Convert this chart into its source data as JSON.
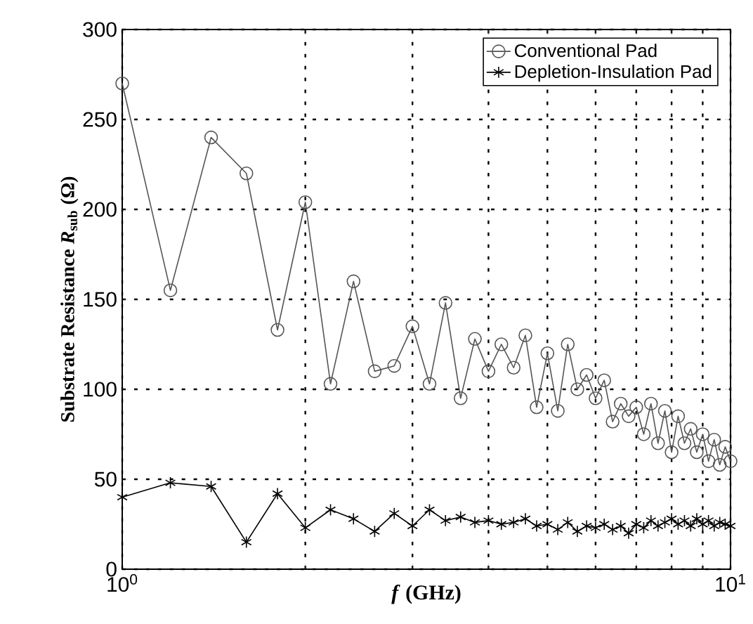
{
  "chart_data": {
    "type": "line",
    "xlabel": "*f* (GHz)",
    "ylabel": "Substrate Resistance *R*$_{sub}$ (Ω)",
    "x": [
      1.0,
      1.2,
      1.4,
      1.6,
      1.8,
      2.0,
      2.2,
      2.4,
      2.6,
      2.8,
      3.0,
      3.2,
      3.4,
      3.6,
      3.8,
      4.0,
      4.2,
      4.4,
      4.6,
      4.8,
      5.0,
      5.2,
      5.4,
      5.6,
      5.8,
      6.0,
      6.2,
      6.4,
      6.6,
      6.8,
      7.0,
      7.2,
      7.4,
      7.6,
      7.8,
      8.0,
      8.2,
      8.4,
      8.6,
      8.8,
      9.0,
      9.2,
      9.4,
      9.6,
      9.8,
      10.0
    ],
    "series": [
      {
        "name": "Conventional Pad",
        "color": "#555555",
        "marker": "circle",
        "values": [
          270,
          155,
          240,
          220,
          133,
          204,
          103,
          160,
          110,
          113,
          135,
          103,
          148,
          95,
          128,
          110,
          125,
          112,
          130,
          90,
          120,
          88,
          125,
          100,
          108,
          95,
          105,
          82,
          92,
          85,
          90,
          75,
          92,
          70,
          88,
          65,
          85,
          70,
          78,
          65,
          75,
          60,
          72,
          58,
          68,
          60
        ]
      },
      {
        "name": "Depletion-Insulation Pad",
        "color": "#000000",
        "marker": "cross",
        "values": [
          40,
          48,
          46,
          15,
          42,
          23,
          33,
          28,
          21,
          31,
          24,
          33,
          27,
          29,
          26,
          27,
          25,
          26,
          28,
          24,
          25,
          22,
          26,
          21,
          24,
          23,
          25,
          22,
          24,
          20,
          25,
          23,
          27,
          24,
          26,
          28,
          25,
          27,
          24,
          28,
          25,
          27,
          24,
          26,
          25,
          24
        ]
      }
    ],
    "xlim": [
      1,
      10
    ],
    "ylim": [
      0,
      300
    ],
    "xticks": [
      {
        "value": 1,
        "label": "10$^{0}$"
      },
      {
        "value": 2,
        "label": null
      },
      {
        "value": 3,
        "label": null
      },
      {
        "value": 4,
        "label": null
      },
      {
        "value": 5,
        "label": null
      },
      {
        "value": 6,
        "label": null
      },
      {
        "value": 7,
        "label": null
      },
      {
        "value": 8,
        "label": null
      },
      {
        "value": 9,
        "label": null
      },
      {
        "value": 10,
        "label": "10$^{1}$"
      }
    ],
    "yticks": [
      0,
      50,
      100,
      150,
      200,
      250,
      300
    ],
    "log": "x",
    "grid": true,
    "legend": "top right",
    "line_style": "solid"
  }
}
